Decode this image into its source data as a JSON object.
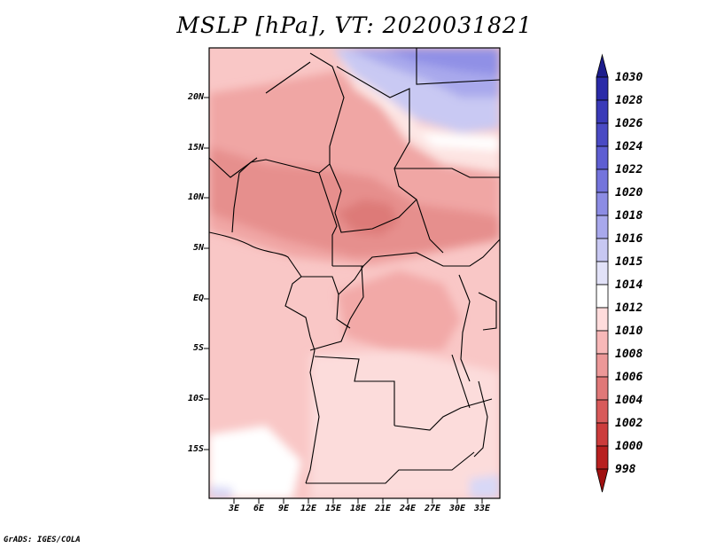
{
  "title": "MSLP [hPa], VT: 2020031821",
  "credit": "GrADS: IGES/COLA",
  "map": {
    "variable": "MSLP",
    "units": "hPa",
    "valid_time": "2020031821",
    "lat_labels": [
      "20N",
      "15N",
      "10N",
      "5N",
      "EQ",
      "5S",
      "10S",
      "15S"
    ],
    "lon_labels": [
      "3E",
      "6E",
      "9E",
      "12E",
      "15E",
      "18E",
      "21E",
      "24E",
      "27E",
      "30E",
      "33E"
    ]
  },
  "colorbar": {
    "labels": [
      "1030",
      "1028",
      "1026",
      "1024",
      "1022",
      "1020",
      "1018",
      "1016",
      "1015",
      "1014",
      "1012",
      "1010",
      "1008",
      "1006",
      "1004",
      "1002",
      "1000",
      "998"
    ],
    "colors": [
      "#1c1c8c",
      "#2a2aa8",
      "#3a3ab8",
      "#4a4ac4",
      "#5e5ed2",
      "#7474dc",
      "#8c8ce4",
      "#a8a8ec",
      "#c8c8f2",
      "#e2e2f8",
      "#ffffff",
      "#ffdcdc",
      "#f8b8b8",
      "#ec9898",
      "#e07878",
      "#d85a5a",
      "#cc3c3c",
      "#b82020",
      "#a01010"
    ]
  }
}
